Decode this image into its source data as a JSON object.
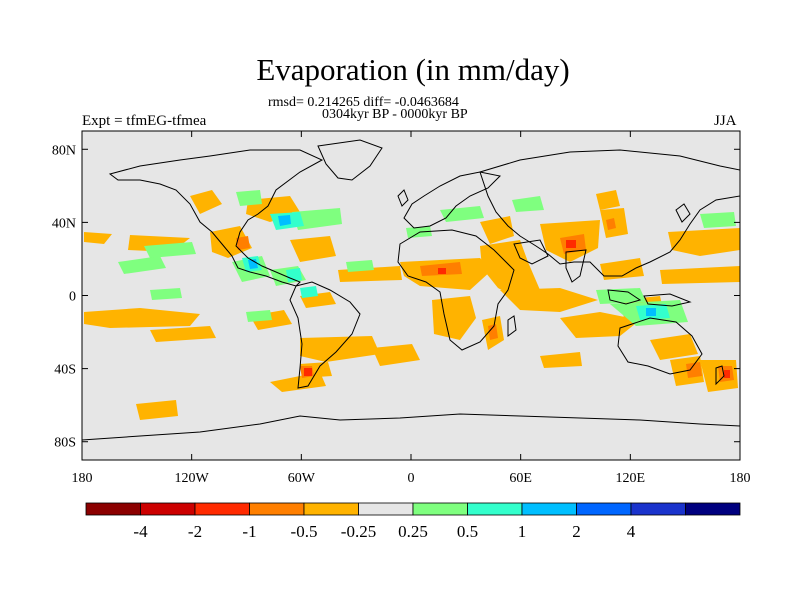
{
  "title": "Evaporation (in mm/day)",
  "stats_line1": "rmsd= 0.214265 diff= -0.0463684",
  "stats_line2": "0304kyr BP - 0000kyr BP",
  "left_label": "Expt = tfmEG-tfmea",
  "right_label": "JJA",
  "map": {
    "lon_range": [
      -180,
      180
    ],
    "lat_range": [
      -90,
      90
    ],
    "background_color": "#e6e6e6",
    "x_ticks": [
      {
        "lon": -180,
        "label": "180"
      },
      {
        "lon": -120,
        "label": "120W"
      },
      {
        "lon": -60,
        "label": "60W"
      },
      {
        "lon": 0,
        "label": "0"
      },
      {
        "lon": 60,
        "label": "60E"
      },
      {
        "lon": 120,
        "label": "120E"
      },
      {
        "lon": 180,
        "label": "180"
      }
    ],
    "y_ticks": [
      {
        "lat": 80,
        "label": "80N"
      },
      {
        "lat": 40,
        "label": "40N"
      },
      {
        "lat": 0,
        "label": "0"
      },
      {
        "lat": -40,
        "label": "40S"
      },
      {
        "lat": -80,
        "label": "80S"
      }
    ]
  },
  "colorbar": {
    "colors": [
      "#8b0000",
      "#cc0000",
      "#ff2a00",
      "#ff7f00",
      "#ffb300",
      "#e6e6e6",
      "#7fff7f",
      "#33ffcc",
      "#00bfff",
      "#0066ff",
      "#1a33cc",
      "#00007f"
    ],
    "labels": [
      "-4",
      "-2",
      "-1",
      "-0.5",
      "-0.25",
      "0.25",
      "0.5",
      "1",
      "2",
      "4"
    ]
  }
}
